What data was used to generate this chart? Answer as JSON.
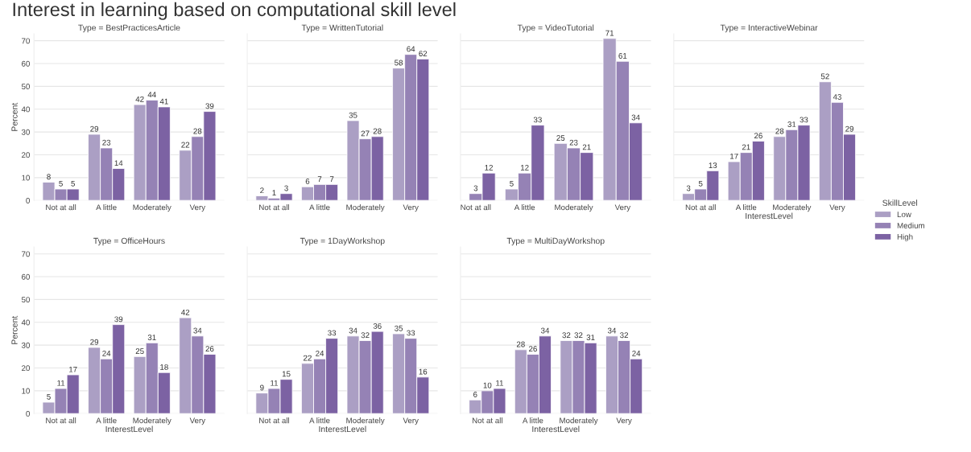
{
  "chart_data": [
    {
      "type": "bar",
      "title": "Type = BestPracticesArticle",
      "ylabel": "Percent",
      "annotations": [
        "Interest in learning based on computational skill level"
      ],
      "categories": [
        "Not at all",
        "A little",
        "Moderately",
        "Very"
      ],
      "ylim": [
        0,
        73
      ],
      "yticks": [
        0,
        10,
        20,
        30,
        40,
        50,
        60,
        70
      ],
      "grid": "y",
      "data_labels": true,
      "series": [
        {
          "color": "#ab9fc4",
          "values": [
            8,
            29,
            42,
            22
          ]
        },
        {
          "color": "#9582b5",
          "values": [
            5,
            23,
            44,
            28
          ]
        },
        {
          "color": "#7c62a3",
          "values": [
            5,
            14,
            41,
            39
          ]
        }
      ]
    },
    {
      "type": "bar",
      "title": "Type = WrittenTutorial",
      "categories": [
        "Not at all",
        "A little",
        "Moderately",
        "Very"
      ],
      "ylim": [
        0,
        73
      ],
      "yticks": [
        0,
        10,
        20,
        30,
        40,
        50,
        60,
        70
      ],
      "tick_labels": "x",
      "grid": "y",
      "data_labels": true,
      "series": [
        {
          "color": "#ab9fc4",
          "values": [
            2,
            6,
            35,
            58
          ]
        },
        {
          "color": "#9582b5",
          "values": [
            1,
            7,
            27,
            64
          ]
        },
        {
          "color": "#7c62a3",
          "values": [
            3,
            7,
            28,
            62
          ]
        }
      ]
    },
    {
      "type": "bar",
      "title": "Type = VideoTutorial",
      "categories": [
        "Not at all",
        "A little",
        "Moderately",
        "Very"
      ],
      "ylim": [
        0,
        73
      ],
      "yticks": [
        0,
        10,
        20,
        30,
        40,
        50,
        60,
        70
      ],
      "tick_labels": "x",
      "grid": "y",
      "data_labels": true,
      "series": [
        {
          "color": "#ab9fc4",
          "values": [
            null,
            5,
            25,
            71
          ]
        },
        {
          "color": "#9582b5",
          "values": [
            3,
            12,
            23,
            61
          ]
        },
        {
          "color": "#7c62a3",
          "values": [
            12,
            33,
            21,
            34
          ]
        }
      ]
    },
    {
      "type": "bar",
      "title": "Type = InteractiveWebinar",
      "xlabel": "InterestLevel",
      "legend_title": "SkillLevel",
      "legend": "right",
      "categories": [
        "Not at all",
        "A little",
        "Moderately",
        "Very"
      ],
      "ylim": [
        0,
        73
      ],
      "yticks": [
        0,
        10,
        20,
        30,
        40,
        50,
        60,
        70
      ],
      "tick_labels": "x",
      "grid": "y",
      "data_labels": true,
      "series": [
        {
          "name": "Low",
          "color": "#ab9fc4",
          "values": [
            3,
            17,
            28,
            52
          ]
        },
        {
          "name": "Medium",
          "color": "#9582b5",
          "values": [
            5,
            21,
            31,
            43
          ]
        },
        {
          "name": "High",
          "color": "#7c62a3",
          "values": [
            13,
            26,
            33,
            29
          ]
        }
      ]
    },
    {
      "type": "bar",
      "title": "Type = OfficeHours",
      "xlabel": "InterestLevel",
      "ylabel": "Percent",
      "categories": [
        "Not at all",
        "A little",
        "Moderately",
        "Very"
      ],
      "ylim": [
        0,
        73
      ],
      "yticks": [
        0,
        10,
        20,
        30,
        40,
        50,
        60,
        70
      ],
      "grid": "y",
      "data_labels": true,
      "series": [
        {
          "color": "#ab9fc4",
          "values": [
            5,
            29,
            25,
            42
          ]
        },
        {
          "color": "#9582b5",
          "values": [
            11,
            24,
            31,
            34
          ]
        },
        {
          "color": "#7c62a3",
          "values": [
            17,
            39,
            18,
            26
          ]
        }
      ]
    },
    {
      "type": "bar",
      "title": "Type = 1DayWorkshop",
      "xlabel": "InterestLevel",
      "categories": [
        "Not at all",
        "A little",
        "Moderately",
        "Very"
      ],
      "ylim": [
        0,
        73
      ],
      "yticks": [
        0,
        10,
        20,
        30,
        40,
        50,
        60,
        70
      ],
      "tick_labels": "x",
      "grid": "y",
      "data_labels": true,
      "series": [
        {
          "color": "#ab9fc4",
          "values": [
            9,
            22,
            34,
            35
          ]
        },
        {
          "color": "#9582b5",
          "values": [
            11,
            24,
            32,
            33
          ]
        },
        {
          "color": "#7c62a3",
          "values": [
            15,
            33,
            36,
            16
          ]
        }
      ]
    },
    {
      "type": "bar",
      "title": "Type = MultiDayWorkshop",
      "xlabel": "InterestLevel",
      "categories": [
        "Not at all",
        "A little",
        "Moderately",
        "Very"
      ],
      "ylim": [
        0,
        73
      ],
      "yticks": [
        0,
        10,
        20,
        30,
        40,
        50,
        60,
        70
      ],
      "tick_labels": "x",
      "grid": "y",
      "data_labels": true,
      "series": [
        {
          "color": "#ab9fc4",
          "values": [
            6,
            28,
            32,
            34
          ]
        },
        {
          "color": "#9582b5",
          "values": [
            10,
            26,
            32,
            32
          ]
        },
        {
          "color": "#7c62a3",
          "values": [
            11,
            34,
            31,
            24
          ]
        }
      ]
    }
  ]
}
